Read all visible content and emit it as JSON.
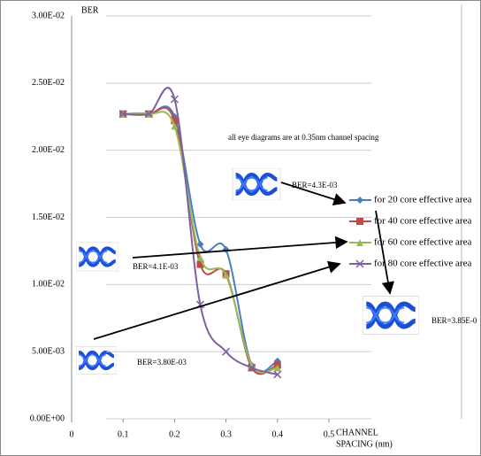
{
  "chart_data": {
    "type": "line",
    "y_label": "BER",
    "x_label_lines": [
      "CHANNEL",
      "SPACING (nm)"
    ],
    "x": [
      0.1,
      0.15,
      0.2,
      0.25,
      0.3,
      0.35,
      0.4
    ],
    "series": [
      {
        "name": "for 20 core effective area",
        "color": "#4a7ebb",
        "marker": "diamond",
        "values": [
          0.0227,
          0.0227,
          0.0225,
          0.013,
          0.0126,
          0.004,
          0.0043
        ]
      },
      {
        "name": "for 40 core effective area",
        "color": "#be4b48",
        "marker": "square",
        "values": [
          0.0227,
          0.0227,
          0.0222,
          0.0115,
          0.0108,
          0.0038,
          0.004
        ]
      },
      {
        "name": "for 60 core effective area",
        "color": "#98b954",
        "marker": "triangle",
        "values": [
          0.0227,
          0.0227,
          0.0218,
          0.012,
          0.0107,
          0.004,
          0.0038
        ]
      },
      {
        "name": "for 80 core effective area",
        "color": "#7d60a0",
        "marker": "x",
        "values": [
          0.0227,
          0.0227,
          0.0238,
          0.0085,
          0.005,
          0.0038,
          0.0033
        ]
      }
    ],
    "xlim": [
      0,
      0.5
    ],
    "xticks": [
      0,
      0.1,
      0.2,
      0.3,
      0.4,
      0.5
    ],
    "ylim": [
      0,
      0.03
    ],
    "yticks": [
      {
        "value": 0,
        "label": "0.00E+00"
      },
      {
        "value": 0.005,
        "label": "5.00E-03"
      },
      {
        "value": 0.01,
        "label": "1.00E-02"
      },
      {
        "value": 0.015,
        "label": "1.50E-02"
      },
      {
        "value": 0.02,
        "label": "2.00E-02"
      },
      {
        "value": 0.025,
        "label": "2.50E-02"
      },
      {
        "value": 0.03,
        "label": "3.00E-02"
      }
    ],
    "grid": true,
    "annotations": [
      "all eye diagrams are at 0.35nm channel spacing",
      "BER=4.3E-03",
      "BER=4.1E-03",
      "BER=3.80E-03",
      "BER=3.85E-0"
    ]
  }
}
